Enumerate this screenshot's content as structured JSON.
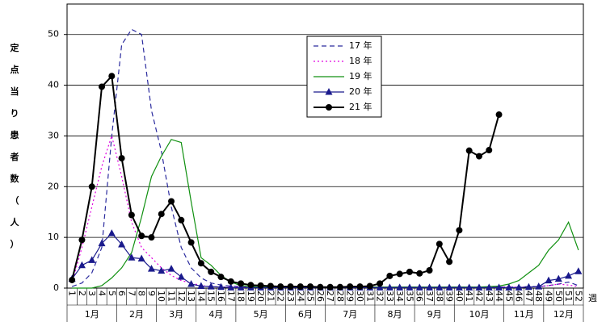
{
  "chart_data": {
    "type": "line",
    "y_label": "定点当り患者数（人）",
    "x_label": "週",
    "categories": [
      "1",
      "2",
      "3",
      "4",
      "5",
      "6",
      "7",
      "8",
      "9",
      "10",
      "11",
      "12",
      "13",
      "14",
      "15",
      "16",
      "17",
      "18",
      "19",
      "20",
      "21",
      "22",
      "23",
      "24",
      "25",
      "26",
      "27",
      "28",
      "29",
      "30",
      "31",
      "32",
      "33",
      "34",
      "35",
      "36",
      "37",
      "38",
      "39",
      "40",
      "41",
      "42",
      "43",
      "44",
      "45",
      "46",
      "47",
      "48",
      "49",
      "50",
      "51",
      "52"
    ],
    "months": [
      "1月",
      "2月",
      "3月",
      "4月",
      "5月",
      "6月",
      "7月",
      "8月",
      "9月",
      "10月",
      "11月",
      "12月"
    ],
    "ylim": [
      0,
      56
    ],
    "yticks": [
      0,
      10,
      20,
      30,
      40,
      50
    ],
    "grid": true,
    "series": [
      {
        "name": "17 年",
        "color": "#2b2b9e",
        "dash": "6,4",
        "values": [
          0.3,
          1,
          3,
          8,
          30,
          48,
          51,
          50,
          35,
          27,
          16,
          8,
          4,
          2,
          1,
          0.6,
          0.4,
          0.3,
          0.3,
          0.3,
          0.2,
          0.2,
          0.2,
          0.2,
          0.2,
          0.2,
          0.2,
          0.2,
          0.2,
          0.2,
          0.2,
          0.2,
          0.2,
          0.2,
          0.2,
          0.2,
          0.2,
          0.2,
          0.2,
          0.2,
          0.2,
          0.2,
          0.2,
          0.2,
          0.2,
          0.2,
          0.3,
          0.3,
          0.5,
          0.8,
          1.2,
          0.5
        ]
      },
      {
        "name": "18 年",
        "color": "#e000e0",
        "dash": "2,3",
        "values": [
          1,
          8,
          16,
          24,
          30,
          22,
          13,
          8,
          6,
          4,
          2.5,
          1.5,
          1,
          0.5,
          0.3,
          0.2,
          0.2,
          0.2,
          0.2,
          0.2,
          0.2,
          0.2,
          0.2,
          0.2,
          0.2,
          0.2,
          0.2,
          0.2,
          0.2,
          0.2,
          0.2,
          0.2,
          0.2,
          0.2,
          0.2,
          0.2,
          0.2,
          0.2,
          0.2,
          0.2,
          0.2,
          0.2,
          0.2,
          0.2,
          0.2,
          0.2,
          0.2,
          0.3,
          0.5,
          0.8,
          0.6,
          0.3
        ]
      },
      {
        "name": "19 年",
        "color": "#109010",
        "dash": "",
        "values": [
          0,
          0,
          0,
          0.5,
          2,
          4,
          7,
          14,
          22,
          26,
          29.3,
          28.7,
          17,
          6,
          4.5,
          2.5,
          1.2,
          0.5,
          0.3,
          0.2,
          0.2,
          0.2,
          0.2,
          0.2,
          0.2,
          0.2,
          0.2,
          0.2,
          0.2,
          0.2,
          0.2,
          0.2,
          0.2,
          0.2,
          0.2,
          0.2,
          0.2,
          0.2,
          0.2,
          0.2,
          0.2,
          0.2,
          0.3,
          0.4,
          0.8,
          1.5,
          3,
          4.5,
          7.5,
          9.5,
          13,
          7.5
        ]
      },
      {
        "name": "20 年",
        "color": "#1a1a8c",
        "dash": "",
        "marker": "triangle",
        "values": [
          1.8,
          4.5,
          5.5,
          8.8,
          10.8,
          8.6,
          6,
          5.8,
          3.8,
          3.4,
          3.8,
          2.2,
          0.8,
          0.4,
          0.3,
          0.2,
          0.1,
          0.1,
          0.1,
          0.1,
          0.1,
          0.1,
          0.1,
          0.1,
          0.1,
          0.1,
          0.1,
          0.1,
          0.1,
          0.1,
          0.1,
          0.1,
          0.1,
          0.1,
          0.1,
          0.1,
          0.1,
          0.1,
          0.1,
          0.1,
          0.1,
          0.1,
          0.1,
          0.1,
          0.1,
          0.1,
          0.2,
          0.3,
          1.5,
          1.8,
          2.4,
          3.3
        ]
      },
      {
        "name": "21 年",
        "color": "#000000",
        "dash": "",
        "marker": "circle",
        "values": [
          1.6,
          9.5,
          20,
          39.7,
          41.8,
          25.6,
          14.4,
          10.3,
          10,
          14.6,
          17.1,
          13.4,
          9,
          4.9,
          3.2,
          2.2,
          1.3,
          0.9,
          0.6,
          0.5,
          0.4,
          0.3,
          0.3,
          0.3,
          0.3,
          0.2,
          0.2,
          0.2,
          0.3,
          0.3,
          0.4,
          0.9,
          2.4,
          2.8,
          3.2,
          2.9,
          3.5,
          8.7,
          5.2,
          11.4,
          27.1,
          26,
          27.2,
          34.2,
          null,
          null,
          null,
          null,
          null,
          null,
          null,
          null
        ]
      }
    ]
  }
}
